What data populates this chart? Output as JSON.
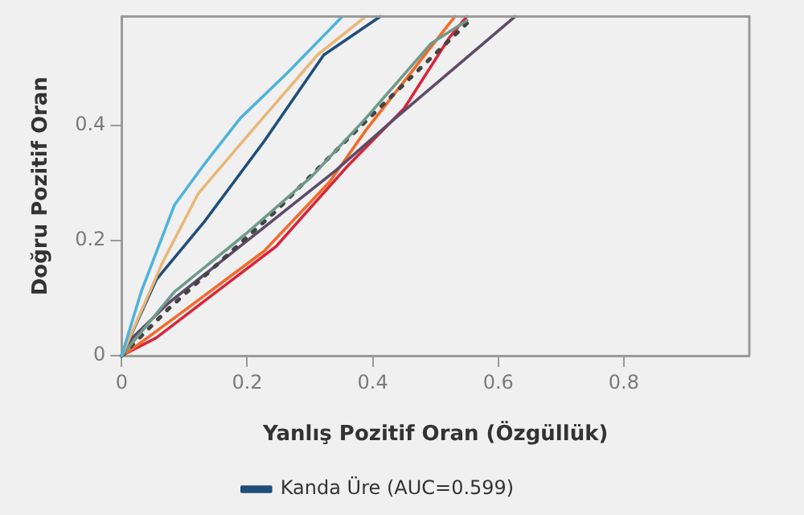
{
  "chart_data": {
    "type": "line",
    "xlabel": "Yanlış Pozitif Oran (Özgüllük)",
    "ylabel": "Doğru Pozitif Oran",
    "xlim": [
      0,
      1
    ],
    "ylim": [
      0,
      0.59
    ],
    "xticks": [
      0,
      0.2,
      0.4,
      0.6,
      0.8
    ],
    "yticks": [
      0,
      0.2,
      0.4
    ],
    "grid": false,
    "legend": "bottom",
    "marker": "none",
    "series": [
      {
        "color": "#4fb3d9",
        "x": [
          0,
          0.031,
          0.084,
          0.131,
          0.189,
          0.265,
          0.35
        ],
        "values": [
          0,
          0.111,
          0.262,
          0.332,
          0.413,
          0.493,
          0.588
        ]
      },
      {
        "color": "#e8b77a",
        "x": [
          0,
          0.065,
          0.122,
          0.208,
          0.312,
          0.389
        ],
        "values": [
          0,
          0.162,
          0.282,
          0.392,
          0.523,
          0.59
        ]
      },
      {
        "name": "Kanda Üre (AUC=0.599)",
        "color": "#1f4e79",
        "x": [
          0,
          0.055,
          0.131,
          0.227,
          0.322,
          0.412
        ],
        "values": [
          0,
          0.132,
          0.232,
          0.373,
          0.523,
          0.59
        ]
      },
      {
        "color": "#6f9a8a",
        "x": [
          0,
          0.084,
          0.198,
          0.303,
          0.389,
          0.493,
          0.55
        ],
        "values": [
          0,
          0.111,
          0.212,
          0.312,
          0.413,
          0.543,
          0.583
        ]
      },
      {
        "color": "#444444",
        "line_style": "dotted",
        "x": [
          0,
          0.074,
          0.246,
          0.36,
          0.474,
          0.55
        ],
        "values": [
          0,
          0.081,
          0.252,
          0.377,
          0.498,
          0.578
        ]
      },
      {
        "color": "#5e4a6a",
        "x": [
          0,
          0.017,
          0.074,
          0.2,
          0.341,
          0.436,
          0.627
        ],
        "values": [
          0,
          0.031,
          0.091,
          0.2,
          0.322,
          0.413,
          0.59
        ]
      },
      {
        "color": "#f26b2a",
        "x": [
          0,
          0.017,
          0.103,
          0.227,
          0.331,
          0.389,
          0.531
        ],
        "values": [
          0,
          0.012,
          0.081,
          0.182,
          0.302,
          0.392,
          0.59
        ]
      },
      {
        "color": "#d7263d",
        "x": [
          0,
          0.055,
          0.151,
          0.246,
          0.36,
          0.45,
          0.522,
          0.55
        ],
        "values": [
          0,
          0.031,
          0.111,
          0.19,
          0.33,
          0.43,
          0.553,
          0.59
        ]
      }
    ]
  }
}
